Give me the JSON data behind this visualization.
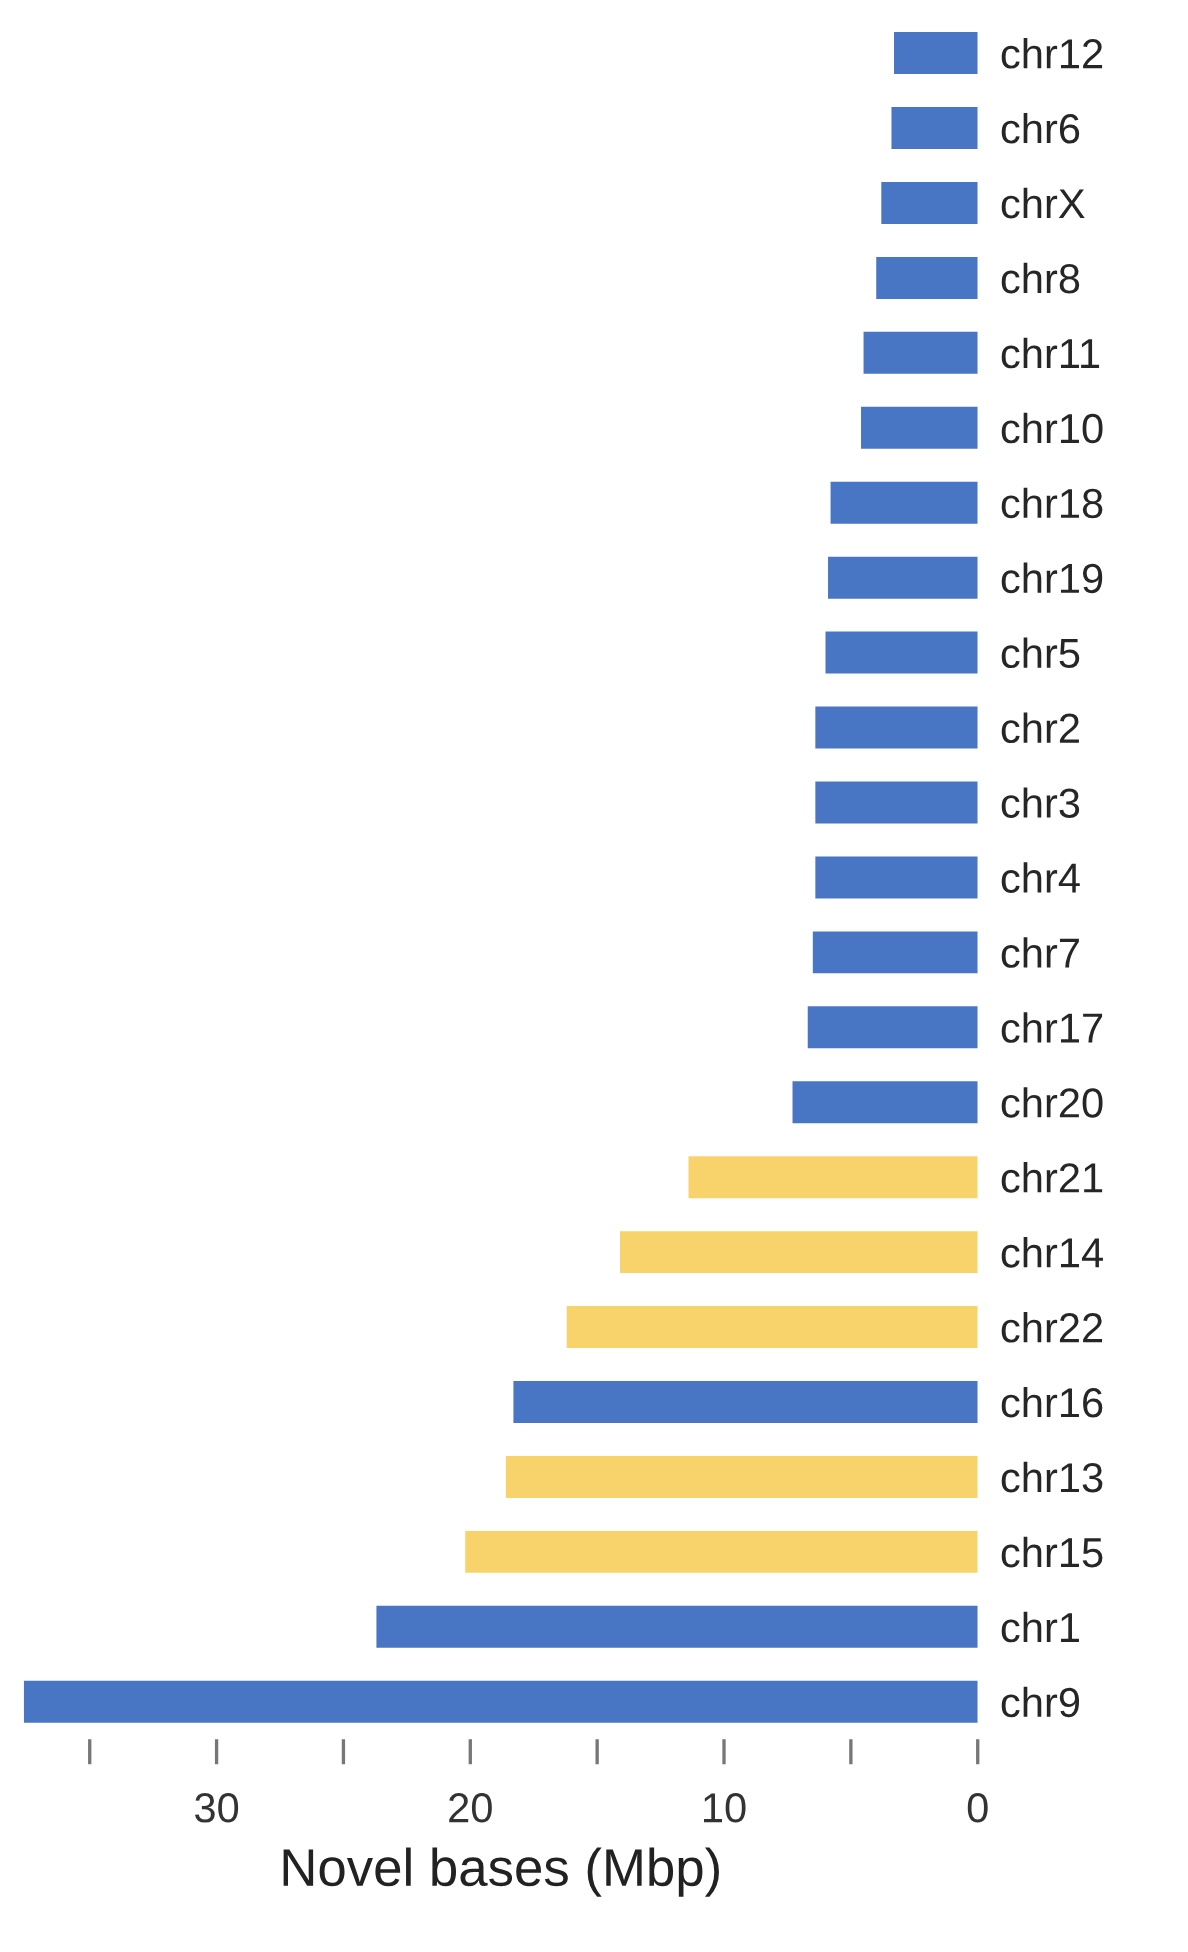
{
  "chart_data": {
    "type": "bar",
    "orientation": "horizontal",
    "xlabel": "Novel bases (Mbp)",
    "categories": [
      "chr12",
      "chr6",
      "chrX",
      "chr8",
      "chr11",
      "chr10",
      "chr18",
      "chr19",
      "chr5",
      "chr2",
      "chr3",
      "chr4",
      "chr7",
      "chr17",
      "chr20",
      "chr21",
      "chr14",
      "chr22",
      "chr16",
      "chr13",
      "chr15",
      "chr1",
      "chr9"
    ],
    "values": [
      3.3,
      3.4,
      3.8,
      4.0,
      4.5,
      4.6,
      5.8,
      5.9,
      6.0,
      6.4,
      6.4,
      6.4,
      6.5,
      6.7,
      7.3,
      11.4,
      14.1,
      16.2,
      18.3,
      18.6,
      20.2,
      23.7,
      37.6
    ],
    "colors": [
      "#4876c4",
      "#4876c4",
      "#4876c4",
      "#4876c4",
      "#4876c4",
      "#4876c4",
      "#4876c4",
      "#4876c4",
      "#4876c4",
      "#4876c4",
      "#4876c4",
      "#4876c4",
      "#4876c4",
      "#4876c4",
      "#4876c4",
      "#f8d36c",
      "#f8d36c",
      "#f8d36c",
      "#4876c4",
      "#f8d36c",
      "#f8d36c",
      "#4876c4",
      "#4876c4"
    ],
    "xlim": [
      37.6,
      0
    ],
    "xticks": [
      {
        "value": 35,
        "label": null
      },
      30,
      {
        "value": 25,
        "label": null
      },
      20,
      {
        "value": 15,
        "label": null
      },
      10,
      {
        "value": 5,
        "label": null
      },
      0
    ],
    "grid": false
  }
}
